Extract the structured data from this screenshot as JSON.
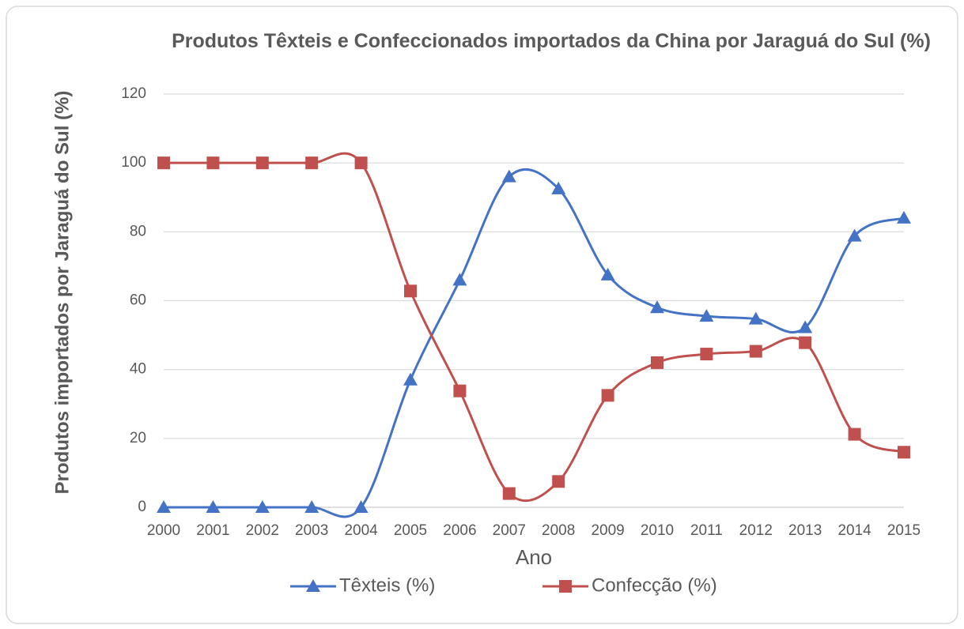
{
  "chart_data": {
    "type": "line",
    "title": "Produtos Têxteis e Confeccionados importados da China por Jaraguá do Sul (%)",
    "xlabel": "Ano",
    "ylabel": "Produtos importados por Jaraguá do Sul (%)",
    "categories": [
      "2000",
      "2001",
      "2002",
      "2003",
      "2004",
      "2005",
      "2006",
      "2007",
      "2008",
      "2009",
      "2010",
      "2011",
      "2012",
      "2013",
      "2014",
      "2015"
    ],
    "series": [
      {
        "name": "Têxteis (%)",
        "color": "#4472c4",
        "marker": "triangle",
        "values": [
          0,
          0,
          0,
          0,
          0,
          37,
          66,
          96,
          92.5,
          67.5,
          58,
          55.5,
          54.7,
          52.2,
          78.8,
          84
        ]
      },
      {
        "name": "Confecção (%)",
        "color": "#c0504d",
        "marker": "square",
        "values": [
          100,
          100,
          100,
          100,
          100,
          62.8,
          33.8,
          4,
          7.5,
          32.5,
          42,
          44.5,
          45.3,
          47.8,
          21.2,
          16
        ]
      }
    ],
    "ylim": [
      0,
      120
    ],
    "yticks": [
      0,
      20,
      40,
      60,
      80,
      100,
      120
    ],
    "grid": true,
    "smooth": true,
    "legend": "bottom"
  }
}
